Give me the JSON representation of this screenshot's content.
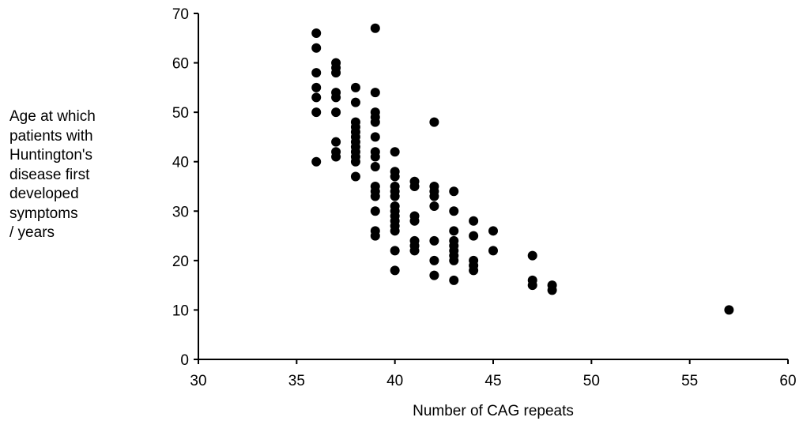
{
  "chart_data": {
    "type": "scatter",
    "title": "",
    "xlabel": "Number of CAG repeats",
    "ylabel_lines": [
      "Age at which",
      "patients with",
      "Huntington's",
      "disease first",
      "developed",
      "symptoms",
      "/ years"
    ],
    "xlim": [
      30,
      60
    ],
    "ylim": [
      0,
      70
    ],
    "xticks": [
      30,
      35,
      40,
      45,
      50,
      55,
      60
    ],
    "yticks": [
      0,
      10,
      20,
      30,
      40,
      50,
      60,
      70
    ],
    "grid": false,
    "legend": "none",
    "marker_color": "#000000",
    "points": [
      [
        36,
        66
      ],
      [
        36,
        63
      ],
      [
        36,
        58
      ],
      [
        36,
        55
      ],
      [
        36,
        53
      ],
      [
        36,
        50
      ],
      [
        36,
        40
      ],
      [
        37,
        60
      ],
      [
        37,
        59
      ],
      [
        37,
        58
      ],
      [
        37,
        54
      ],
      [
        37,
        53
      ],
      [
        37,
        50
      ],
      [
        37,
        44
      ],
      [
        37,
        42
      ],
      [
        37,
        41
      ],
      [
        38,
        55
      ],
      [
        38,
        52
      ],
      [
        38,
        48
      ],
      [
        38,
        47
      ],
      [
        38,
        46
      ],
      [
        38,
        45
      ],
      [
        38,
        44
      ],
      [
        38,
        43
      ],
      [
        38,
        42
      ],
      [
        38,
        41
      ],
      [
        38,
        40
      ],
      [
        38,
        37
      ],
      [
        39,
        67
      ],
      [
        39,
        54
      ],
      [
        39,
        50
      ],
      [
        39,
        49
      ],
      [
        39,
        48
      ],
      [
        39,
        45
      ],
      [
        39,
        42
      ],
      [
        39,
        41
      ],
      [
        39,
        39
      ],
      [
        39,
        35
      ],
      [
        39,
        34
      ],
      [
        39,
        33
      ],
      [
        39,
        30
      ],
      [
        39,
        26
      ],
      [
        39,
        25
      ],
      [
        40,
        42
      ],
      [
        40,
        38
      ],
      [
        40,
        37
      ],
      [
        40,
        35
      ],
      [
        40,
        34
      ],
      [
        40,
        33
      ],
      [
        40,
        31
      ],
      [
        40,
        30
      ],
      [
        40,
        29
      ],
      [
        40,
        28
      ],
      [
        40,
        27
      ],
      [
        40,
        26
      ],
      [
        40,
        22
      ],
      [
        40,
        18
      ],
      [
        41,
        36
      ],
      [
        41,
        35
      ],
      [
        41,
        29
      ],
      [
        41,
        28
      ],
      [
        41,
        24
      ],
      [
        41,
        23
      ],
      [
        41,
        22
      ],
      [
        42,
        48
      ],
      [
        42,
        35
      ],
      [
        42,
        34
      ],
      [
        42,
        33
      ],
      [
        42,
        31
      ],
      [
        42,
        24
      ],
      [
        42,
        20
      ],
      [
        42,
        17
      ],
      [
        43,
        34
      ],
      [
        43,
        30
      ],
      [
        43,
        26
      ],
      [
        43,
        24
      ],
      [
        43,
        23
      ],
      [
        43,
        22
      ],
      [
        43,
        21
      ],
      [
        43,
        20
      ],
      [
        43,
        16
      ],
      [
        44,
        28
      ],
      [
        44,
        25
      ],
      [
        44,
        20
      ],
      [
        44,
        19
      ],
      [
        44,
        18
      ],
      [
        45,
        26
      ],
      [
        45,
        22
      ],
      [
        47,
        21
      ],
      [
        47,
        16
      ],
      [
        47,
        15
      ],
      [
        48,
        15
      ],
      [
        48,
        14
      ],
      [
        57,
        10
      ]
    ]
  }
}
